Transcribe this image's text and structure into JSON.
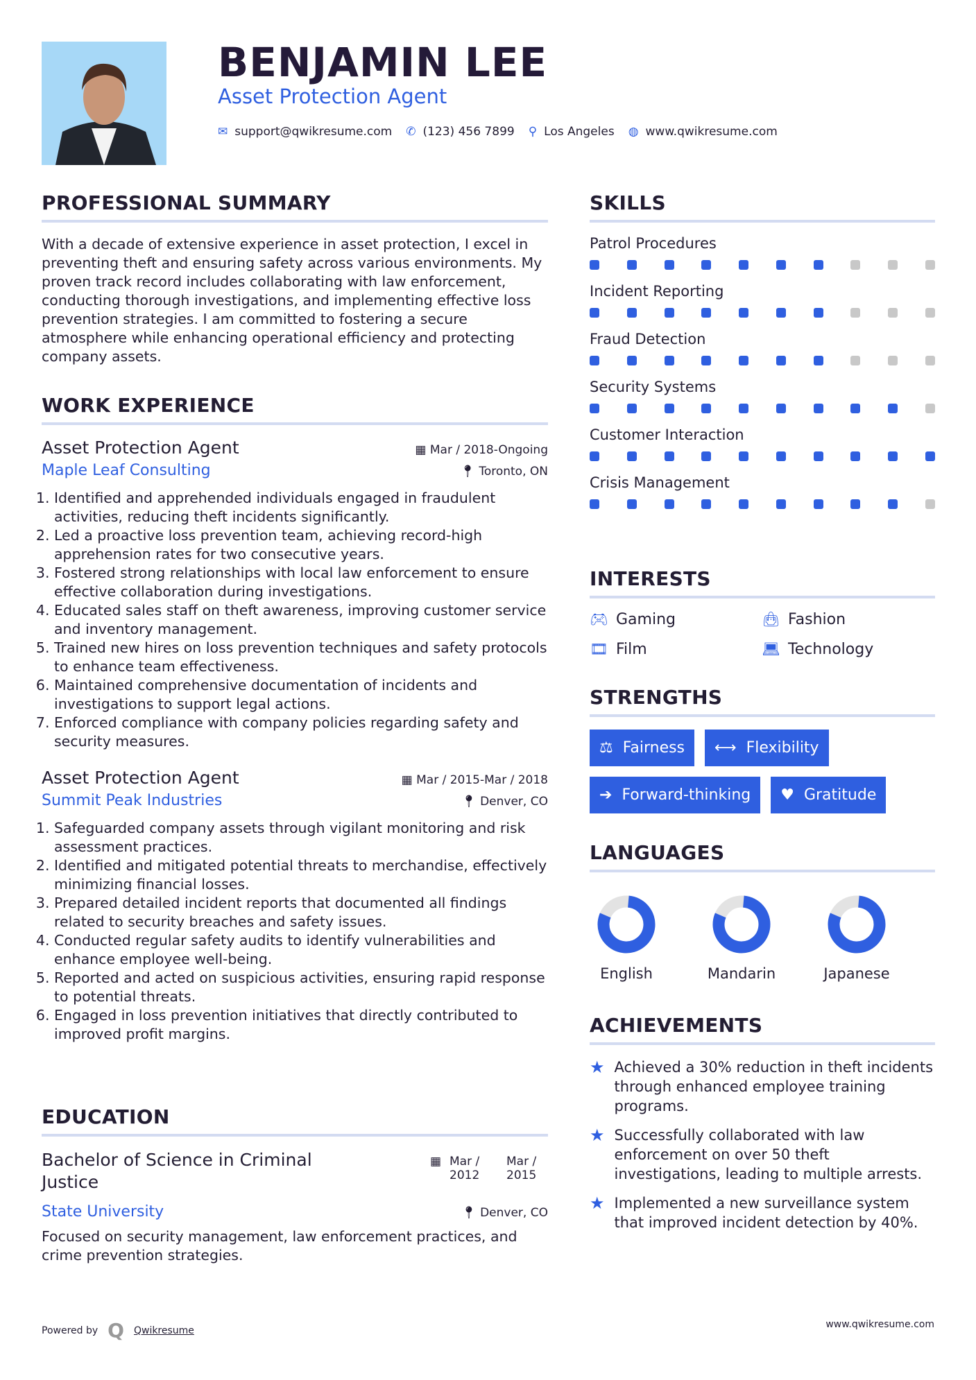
{
  "header": {
    "name": "BENJAMIN LEE",
    "title": "Asset Protection Agent",
    "contact": [
      {
        "icon": "envelope-icon",
        "glyph": "✉",
        "text": "support@qwikresume.com"
      },
      {
        "icon": "phone-icon",
        "glyph": "✆",
        "text": "(123) 456 7899"
      },
      {
        "icon": "map-marker-icon",
        "glyph": "⚲",
        "text": "Los Angeles"
      },
      {
        "icon": "globe-icon",
        "glyph": "◍",
        "text": "www.qwikresume.com"
      }
    ]
  },
  "summary": {
    "heading": "PROFESSIONAL SUMMARY",
    "text": "With a decade of extensive experience in asset protection, I excel in preventing theft and ensuring safety across various environments. My proven track record includes collaborating with law enforcement, conducting thorough investigations, and implementing effective loss prevention strategies. I am committed to fostering a secure atmosphere while enhancing operational efficiency and protecting company assets."
  },
  "work": {
    "heading": "WORK EXPERIENCE",
    "jobs": [
      {
        "title": "Asset Protection Agent",
        "date": "Mar / 2018-Ongoing",
        "company": "Maple Leaf Consulting",
        "location": "Toronto, ON",
        "bullets": [
          "Identified and apprehended individuals engaged in fraudulent activities, reducing theft incidents significantly.",
          "Led a proactive loss prevention team, achieving record-high apprehension rates for two consecutive years.",
          "Fostered strong relationships with local law enforcement to ensure effective collaboration during investigations.",
          "Educated sales staff on theft awareness, improving customer service and inventory management.",
          "Trained new hires on loss prevention techniques and safety protocols to enhance team effectiveness.",
          "Maintained comprehensive documentation of incidents and investigations to support legal actions.",
          "Enforced compliance with company policies regarding safety and security measures."
        ]
      },
      {
        "title": "Asset Protection Agent",
        "date": "Mar / 2015-Mar / 2018",
        "company": "Summit Peak Industries",
        "location": "Denver, CO",
        "bullets": [
          "Safeguarded company assets through vigilant monitoring and risk assessment practices.",
          "Identified and mitigated potential threats to merchandise, effectively minimizing financial losses.",
          "Prepared detailed incident reports that documented all findings related to security breaches and safety issues.",
          "Conducted regular safety audits to identify vulnerabilities and enhance employee well-being.",
          "Reported and acted on suspicious activities, ensuring rapid response to potential threats.",
          "Engaged in loss prevention initiatives that directly contributed to improved profit margins."
        ]
      }
    ]
  },
  "education": {
    "heading": "EDUCATION",
    "degree": "Bachelor of Science in Criminal Justice",
    "start": "Mar / 2012",
    "end": "Mar / 2015",
    "school": "State University",
    "location": "Denver, CO",
    "text": "Focused on security management, law enforcement practices, and crime prevention strategies."
  },
  "skills": {
    "heading": "SKILLS",
    "max": 10,
    "items": [
      {
        "name": "Patrol Procedures",
        "level": 7
      },
      {
        "name": "Incident Reporting",
        "level": 7
      },
      {
        "name": "Fraud Detection",
        "level": 7
      },
      {
        "name": "Security Systems",
        "level": 9
      },
      {
        "name": "Customer Interaction",
        "level": 10
      },
      {
        "name": "Crisis Management",
        "level": 9
      }
    ]
  },
  "interests": {
    "heading": "INTERESTS",
    "items": [
      {
        "icon": "gamepad-icon",
        "glyph": "🎮︎",
        "label": "Gaming"
      },
      {
        "icon": "shopping-bag-icon",
        "glyph": "👜︎",
        "label": "Fashion"
      },
      {
        "icon": "film-icon",
        "glyph": "🎞︎",
        "label": "Film"
      },
      {
        "icon": "laptop-icon",
        "glyph": "💻︎",
        "label": "Technology"
      }
    ]
  },
  "strengths": {
    "heading": "STRENGTHS",
    "items": [
      {
        "icon": "balance-scale-icon",
        "glyph": "⚖",
        "label": "Fairness"
      },
      {
        "icon": "arrows-horizontal-icon",
        "glyph": "⟷",
        "label": "Flexibility"
      },
      {
        "icon": "arrow-right-icon",
        "glyph": "➔",
        "label": "Forward-thinking"
      },
      {
        "icon": "heart-icon",
        "glyph": "♥",
        "label": "Gratitude"
      }
    ]
  },
  "languages": {
    "heading": "LANGUAGES",
    "items": [
      {
        "name": "English",
        "level": 80
      },
      {
        "name": "Mandarin",
        "level": 80
      },
      {
        "name": "Japanese",
        "level": 80
      }
    ]
  },
  "achievements": {
    "heading": "ACHIEVEMENTS",
    "items": [
      "Achieved a 30% reduction in theft incidents through enhanced employee training programs.",
      "Successfully collaborated with law enforcement on over 50 theft investigations, leading to multiple arrests.",
      "Implemented a new surveillance system that improved incident detection by 40%."
    ]
  },
  "footer": {
    "powered": "Powered by",
    "brand": "Qwikresume",
    "site": "www.qwikresume.com"
  },
  "colors": {
    "accent": "#2f5fe0",
    "text": "#231d33",
    "inactive": "#c8c8c8"
  }
}
